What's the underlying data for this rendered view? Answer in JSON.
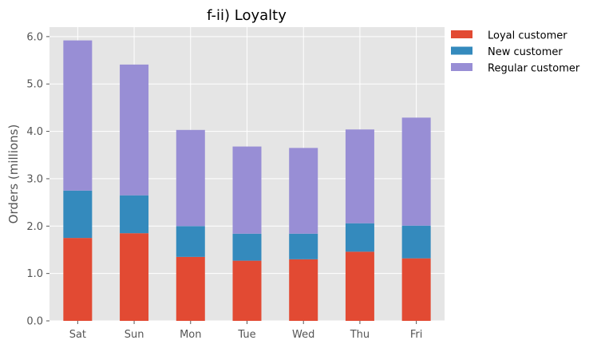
{
  "chart_data": {
    "type": "bar",
    "stacked": true,
    "title": "f-ii) Loyalty",
    "xlabel": "",
    "ylabel": "Orders (millions)",
    "ylim": [
      0,
      6.2
    ],
    "yticks": [
      "0.0",
      "1.0",
      "2.0",
      "3.0",
      "4.0",
      "5.0",
      "6.0"
    ],
    "categories": [
      "Sat",
      "Sun",
      "Mon",
      "Tue",
      "Wed",
      "Thu",
      "Fri"
    ],
    "series": [
      {
        "name": "Loyal customer",
        "color": "#E24A33",
        "values": [
          1.75,
          1.85,
          1.35,
          1.27,
          1.3,
          1.46,
          1.32
        ]
      },
      {
        "name": "New customer",
        "color": "#348ABD",
        "values": [
          1.0,
          0.8,
          0.65,
          0.57,
          0.54,
          0.6,
          0.69
        ]
      },
      {
        "name": "Regular customer",
        "color": "#988ED5",
        "values": [
          3.17,
          2.76,
          2.03,
          1.84,
          1.81,
          1.98,
          2.28
        ]
      }
    ],
    "grid": true,
    "legend": "outside-top-right",
    "plot_background": "#E5E5E5",
    "grid_color": "#FFFFFF"
  }
}
